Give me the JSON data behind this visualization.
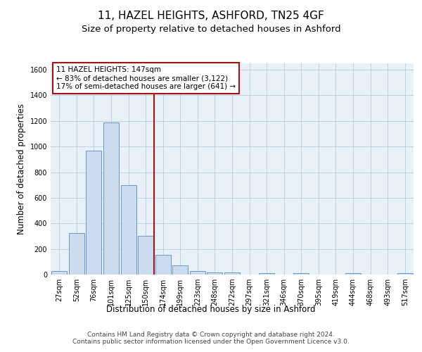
{
  "title": "11, HAZEL HEIGHTS, ASHFORD, TN25 4GF",
  "subtitle": "Size of property relative to detached houses in Ashford",
  "xlabel": "Distribution of detached houses by size in Ashford",
  "ylabel": "Number of detached properties",
  "bar_labels": [
    "27sqm",
    "52sqm",
    "76sqm",
    "101sqm",
    "125sqm",
    "150sqm",
    "174sqm",
    "199sqm",
    "223sqm",
    "248sqm",
    "272sqm",
    "297sqm",
    "321sqm",
    "346sqm",
    "370sqm",
    "395sqm",
    "419sqm",
    "444sqm",
    "468sqm",
    "493sqm",
    "517sqm"
  ],
  "bar_values": [
    25,
    325,
    970,
    1190,
    700,
    305,
    155,
    70,
    25,
    15,
    15,
    0,
    10,
    0,
    10,
    0,
    0,
    10,
    0,
    0,
    10
  ],
  "bar_color": "#ccdcee",
  "bar_edge_color": "#6699cc",
  "vline_x": 5.5,
  "vline_color": "#aa1111",
  "annotation_line1": "11 HAZEL HEIGHTS: 147sqm",
  "annotation_line2": "← 83% of detached houses are smaller (3,122)",
  "annotation_line3": "17% of semi-detached houses are larger (641) →",
  "annotation_box_color": "white",
  "annotation_box_edge_color": "#aa1111",
  "ylim": [
    0,
    1650
  ],
  "yticks": [
    0,
    200,
    400,
    600,
    800,
    1000,
    1200,
    1400,
    1600
  ],
  "grid_color": "#b8cce0",
  "background_color": "#e8f0f8",
  "footer_text": "Contains HM Land Registry data © Crown copyright and database right 2024.\nContains public sector information licensed under the Open Government Licence v3.0.",
  "title_fontsize": 11,
  "subtitle_fontsize": 9.5,
  "xlabel_fontsize": 8.5,
  "ylabel_fontsize": 8.5,
  "tick_fontsize": 7,
  "annotation_fontsize": 7.5,
  "footer_fontsize": 6.5
}
